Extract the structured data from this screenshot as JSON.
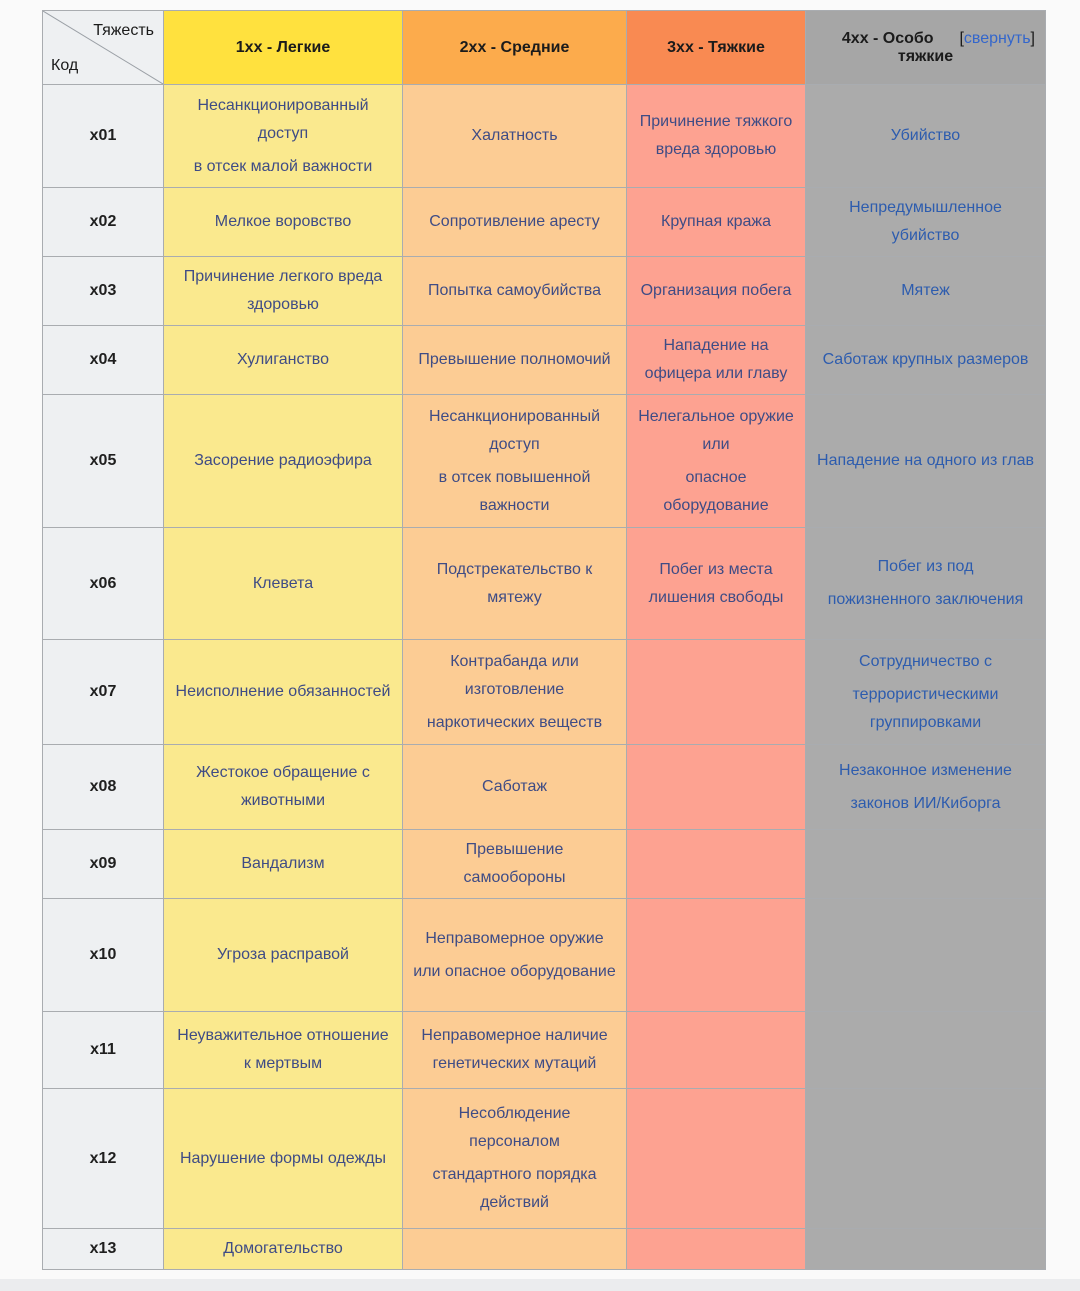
{
  "colors": {
    "yellow_header": "#ffe13e",
    "yellow_cell": "#fae98e",
    "orange_header": "#fcab4c",
    "orange_cell": "#fccc94",
    "red_header": "#f98a52",
    "red_cell": "#fda291",
    "gray_header": "#a6a6a6",
    "gray_cell": "#ababab",
    "code_bg": "#eef0f2",
    "link_on_color": "#3f4c85",
    "link_on_gray": "#2d5cae",
    "toggle_link": "#3366cc"
  },
  "table": {
    "corner": {
      "top_label": "Тяжесть",
      "bottom_label": "Код"
    },
    "columns": [
      {
        "key": "c1",
        "label": "1xx - Легкие"
      },
      {
        "key": "c2",
        "label": "2xx - Средние"
      },
      {
        "key": "c3",
        "label": "3xx - Тяжкие"
      },
      {
        "key": "c4",
        "label": "4xx - Особо тяжкие",
        "toggle": {
          "bracket_open": "[",
          "label": "свернуть",
          "bracket_close": "]"
        }
      }
    ],
    "rows": [
      {
        "code": "x01",
        "c1": [
          "Несанкционированный доступ",
          "в отсек малой важности"
        ],
        "c2": [
          "Халатность"
        ],
        "c3": [
          "Причинение тяжкого вреда здоровью"
        ],
        "c4": [
          "Убийство"
        ]
      },
      {
        "code": "x02",
        "c1": [
          "Мелкое воровство"
        ],
        "c2": [
          "Сопротивление аресту"
        ],
        "c3": [
          "Крупная кража"
        ],
        "c4": [
          "Непредумышленное убийство"
        ]
      },
      {
        "code": "x03",
        "c1": [
          "Причинение легкого вреда здоровью"
        ],
        "c2": [
          "Попытка самоубийства"
        ],
        "c3": [
          "Организация побега"
        ],
        "c4": [
          "Мятеж"
        ]
      },
      {
        "code": "x04",
        "c1": [
          "Хулиганство"
        ],
        "c2": [
          "Превышение полномочий"
        ],
        "c3": [
          "Нападение на офицера или главу"
        ],
        "c4": [
          "Саботаж крупных размеров"
        ]
      },
      {
        "code": "x05",
        "c1": [
          "Засорение радиоэфира"
        ],
        "c2": [
          "Несанкционированный доступ",
          "в отсек повышенной важности"
        ],
        "c3": [
          "Нелегальное оружие или",
          "опасное оборудование"
        ],
        "c4": [
          "Нападение на одного из глав"
        ]
      },
      {
        "code": "x06",
        "c1": [
          "Клевета"
        ],
        "c2": [
          "Подстрекательство к мятежу"
        ],
        "c3": [
          "Побег из места лишения свободы"
        ],
        "c4": [
          "Побег из под",
          "пожизненного заключения"
        ]
      },
      {
        "code": "x07",
        "c1": [
          "Неисполнение обязанностей"
        ],
        "c2": [
          "Контрабанда или изготовление",
          "наркотических веществ"
        ],
        "c3": [],
        "c4": [
          "Сотрудничество с",
          "террористическими группировками"
        ]
      },
      {
        "code": "x08",
        "c1": [
          "Жестокое обращение с животными"
        ],
        "c2": [
          "Саботаж"
        ],
        "c3": [],
        "c4": [
          "Незаконное изменение",
          "законов ИИ/Киборга"
        ]
      },
      {
        "code": "x09",
        "c1": [
          "Вандализм"
        ],
        "c2": [
          "Превышение самообороны"
        ],
        "c3": [],
        "c4": []
      },
      {
        "code": "x10",
        "c1": [
          "Угроза расправой"
        ],
        "c2": [
          "Неправомерное оружие",
          "или опасное оборудование"
        ],
        "c3": [],
        "c4": []
      },
      {
        "code": "x11",
        "c1": [
          "Неуважительное отношение к мертвым"
        ],
        "c2": [
          "Неправомерное наличие генетических мутаций"
        ],
        "c3": [],
        "c4": []
      },
      {
        "code": "x12",
        "c1": [
          "Нарушение формы одежды"
        ],
        "c2": [
          "Несоблюдение персоналом",
          "стандартного порядка действий"
        ],
        "c3": [],
        "c4": []
      },
      {
        "code": "x13",
        "c1": [
          "Домогательство"
        ],
        "c2": [],
        "c3": [],
        "c4": []
      }
    ]
  }
}
